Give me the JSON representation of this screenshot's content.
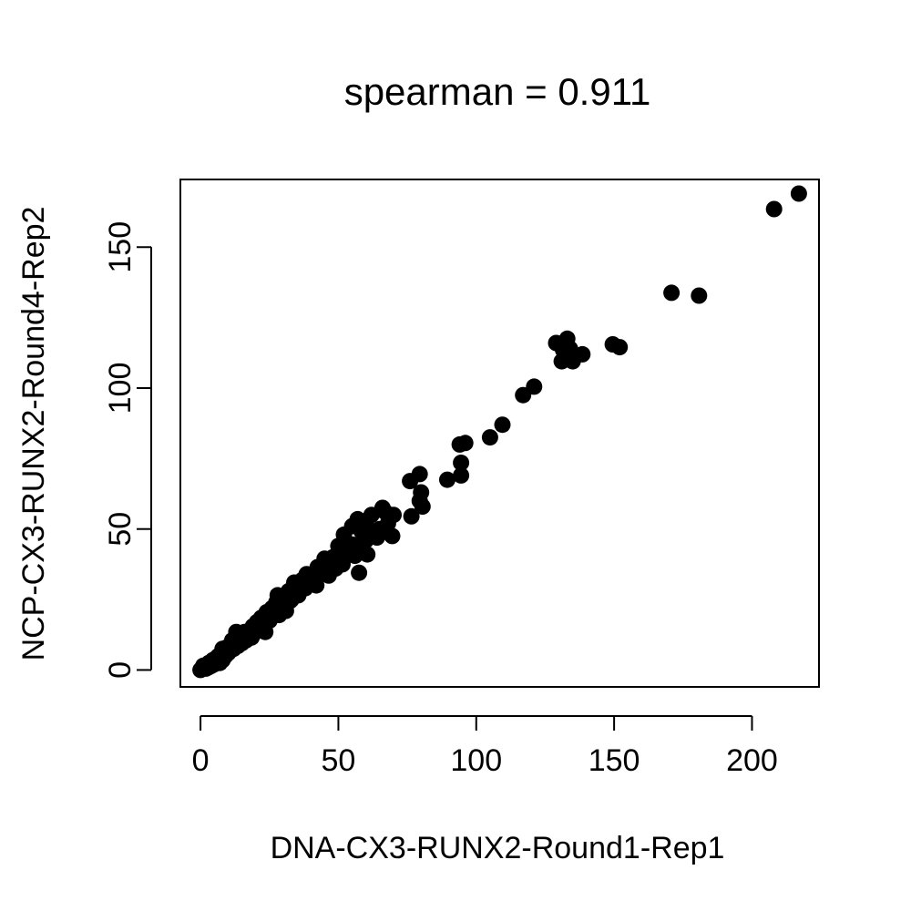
{
  "chart_data": {
    "type": "scatter",
    "title": "spearman = 0.911",
    "xlabel": "DNA-CX3-RUNX2-Round1-Rep1",
    "ylabel": "NCP-CX3-RUNX2-Round4-Rep2",
    "xlim": [
      -7.3,
      224.3
    ],
    "ylim": [
      -6.0,
      174.0
    ],
    "xticks": [
      0,
      50,
      100,
      150,
      200
    ],
    "yticks": [
      0,
      50,
      100,
      150
    ],
    "grid": false,
    "marker_color": "#000000",
    "points": [
      [
        217.0,
        169.0
      ],
      [
        208.0,
        163.5
      ],
      [
        170.8,
        133.8
      ],
      [
        180.8,
        132.8
      ],
      [
        129.0,
        116.0
      ],
      [
        131.5,
        113.5
      ],
      [
        133.0,
        117.5
      ],
      [
        131.0,
        109.5
      ],
      [
        134.0,
        114.0
      ],
      [
        135.0,
        109.5
      ],
      [
        138.5,
        112.0
      ],
      [
        149.5,
        115.5
      ],
      [
        152.0,
        114.5
      ],
      [
        117.0,
        97.5
      ],
      [
        121.0,
        100.5
      ],
      [
        109.5,
        87.0
      ],
      [
        105.0,
        82.5
      ],
      [
        94.0,
        80.0
      ],
      [
        96.0,
        80.5
      ],
      [
        94.5,
        73.5
      ],
      [
        94.5,
        69.0
      ],
      [
        89.5,
        67.5
      ],
      [
        76.0,
        67.0
      ],
      [
        79.5,
        69.5
      ],
      [
        80.0,
        63.0
      ],
      [
        80.5,
        58.0
      ],
      [
        79.5,
        60.0
      ],
      [
        76.5,
        54.5
      ],
      [
        70.0,
        55.0
      ],
      [
        67.0,
        56.0
      ],
      [
        68.0,
        52.0
      ],
      [
        69.5,
        47.5
      ],
      [
        64.0,
        47.0
      ],
      [
        66.0,
        57.5
      ],
      [
        62.0,
        55.0
      ],
      [
        60.0,
        52.0
      ],
      [
        57.0,
        53.5
      ],
      [
        55.0,
        51.0
      ],
      [
        52.0,
        48.0
      ],
      [
        55.0,
        44.5
      ],
      [
        57.5,
        34.5
      ],
      [
        58.0,
        42.0
      ],
      [
        60.0,
        46.0
      ],
      [
        62.0,
        48.5
      ],
      [
        58.5,
        49.0
      ],
      [
        53.0,
        42.0
      ],
      [
        50.0,
        44.0
      ],
      [
        48.0,
        40.0
      ],
      [
        45.0,
        39.5
      ],
      [
        47.0,
        36.0
      ],
      [
        51.5,
        37.5
      ],
      [
        46.5,
        33.5
      ],
      [
        43.5,
        35.0
      ],
      [
        42.5,
        36.5
      ],
      [
        38.5,
        34.0
      ],
      [
        40.0,
        31.5
      ],
      [
        42.0,
        30.0
      ],
      [
        37.0,
        32.0
      ],
      [
        35.0,
        30.0
      ],
      [
        34.0,
        31.0
      ],
      [
        32.0,
        28.0
      ],
      [
        33.0,
        25.0
      ],
      [
        30.5,
        26.0
      ],
      [
        28.0,
        26.5
      ],
      [
        27.5,
        24.0
      ],
      [
        29.0,
        21.5
      ],
      [
        31.0,
        21.0
      ],
      [
        26.0,
        22.0
      ],
      [
        24.0,
        20.5
      ],
      [
        25.0,
        17.5
      ],
      [
        28.5,
        19.5
      ],
      [
        22.0,
        18.5
      ],
      [
        20.5,
        17.0
      ],
      [
        21.5,
        15.0
      ],
      [
        23.5,
        13.5
      ],
      [
        19.0,
        15.5
      ],
      [
        17.5,
        13.5
      ],
      [
        18.5,
        11.5
      ],
      [
        16.0,
        13.5
      ],
      [
        15.0,
        12.0
      ],
      [
        16.5,
        10.5
      ],
      [
        14.0,
        11.0
      ],
      [
        13.0,
        13.5
      ],
      [
        12.5,
        9.5
      ],
      [
        11.5,
        10.5
      ],
      [
        10.5,
        8.5
      ],
      [
        9.5,
        8.0
      ],
      [
        11.0,
        7.0
      ],
      [
        8.5,
        6.5
      ],
      [
        8.0,
        7.5
      ],
      [
        7.5,
        5.5
      ],
      [
        6.5,
        5.0
      ],
      [
        7.0,
        4.0
      ],
      [
        6.0,
        4.5
      ],
      [
        5.5,
        3.5
      ],
      [
        5.0,
        3.0
      ],
      [
        4.5,
        3.5
      ],
      [
        4.0,
        2.5
      ],
      [
        3.5,
        2.0
      ],
      [
        3.0,
        2.5
      ],
      [
        2.5,
        1.5
      ],
      [
        2.0,
        1.5
      ],
      [
        1.5,
        1.0
      ],
      [
        1.0,
        0.5
      ],
      [
        0.5,
        0.5
      ],
      [
        0.0,
        0.0
      ],
      [
        1.0,
        1.5
      ],
      [
        2.0,
        0.5
      ],
      [
        3.0,
        1.0
      ],
      [
        4.0,
        1.5
      ],
      [
        5.0,
        2.0
      ],
      [
        6.0,
        3.0
      ],
      [
        7.0,
        2.5
      ],
      [
        8.0,
        3.5
      ],
      [
        9.0,
        5.0
      ],
      [
        10.0,
        6.0
      ],
      [
        12.0,
        7.5
      ],
      [
        13.5,
        8.5
      ],
      [
        15.0,
        9.5
      ],
      [
        17.0,
        11.0
      ],
      [
        19.0,
        12.5
      ],
      [
        21.0,
        14.5
      ],
      [
        23.0,
        16.0
      ],
      [
        25.5,
        19.0
      ],
      [
        27.0,
        20.0
      ],
      [
        30.0,
        22.5
      ],
      [
        32.5,
        24.5
      ],
      [
        35.5,
        26.5
      ],
      [
        38.0,
        29.0
      ],
      [
        41.0,
        32.0
      ],
      [
        44.0,
        34.0
      ],
      [
        49.0,
        36.0
      ],
      [
        56.0,
        40.5
      ],
      [
        60.5,
        41.0
      ],
      [
        65.0,
        50.0
      ]
    ]
  }
}
